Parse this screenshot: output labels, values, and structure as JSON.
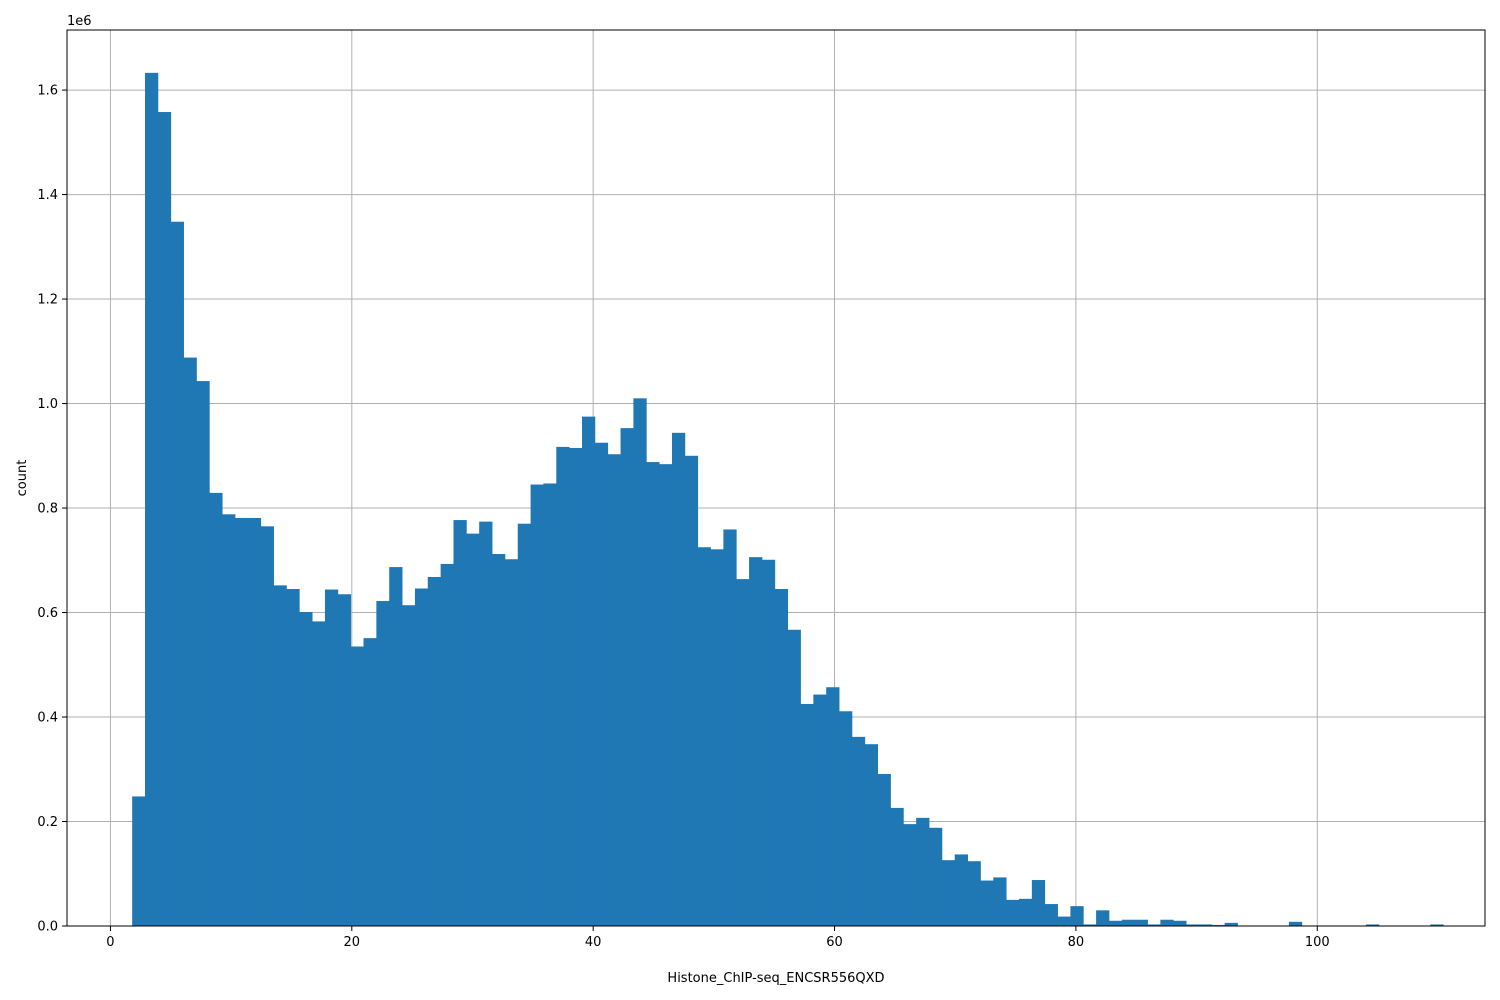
{
  "chart_data": {
    "type": "bar",
    "title": "",
    "xlabel": "Histone_ChIP-seq_ENCSR556QXD",
    "ylabel": "count",
    "y_offset_label": "1e6",
    "xlim": [
      -3.6,
      113.9
    ],
    "ylim": [
      0,
      1.715
    ],
    "xticks": [
      0,
      20,
      40,
      60,
      80,
      100
    ],
    "yticks": [
      0.0,
      0.2,
      0.4,
      0.6,
      0.8,
      1.0,
      1.2,
      1.4,
      1.6
    ],
    "xtick_labels": [
      "0",
      "20",
      "40",
      "60",
      "80",
      "100"
    ],
    "ytick_labels": [
      "0.0",
      "0.2",
      "0.4",
      "0.6",
      "0.8",
      "1.0",
      "1.2",
      "1.4",
      "1.6"
    ],
    "grid": true,
    "bar_color": "#1f77b4",
    "bin_start": 1.8,
    "bin_width": 1.065,
    "values_scale": "1e6",
    "values": [
      0.248,
      1.633,
      1.558,
      1.348,
      1.088,
      1.043,
      0.829,
      0.788,
      0.781,
      0.781,
      0.765,
      0.652,
      0.645,
      0.601,
      0.583,
      0.644,
      0.635,
      0.535,
      0.551,
      0.622,
      0.687,
      0.614,
      0.646,
      0.668,
      0.693,
      0.777,
      0.751,
      0.774,
      0.712,
      0.702,
      0.77,
      0.845,
      0.847,
      0.917,
      0.915,
      0.975,
      0.925,
      0.903,
      0.953,
      1.01,
      0.888,
      0.884,
      0.944,
      0.9,
      0.725,
      0.721,
      0.759,
      0.664,
      0.706,
      0.701,
      0.645,
      0.567,
      0.425,
      0.443,
      0.457,
      0.411,
      0.362,
      0.348,
      0.291,
      0.226,
      0.195,
      0.207,
      0.188,
      0.126,
      0.137,
      0.124,
      0.087,
      0.093,
      0.05,
      0.052,
      0.088,
      0.042,
      0.018,
      0.038,
      0.003,
      0.03,
      0.01,
      0.012,
      0.012,
      0.003,
      0.012,
      0.01,
      0.003,
      0.003,
      0.002,
      0.006,
      0.001,
      0.001,
      0.001,
      0.001,
      0.008,
      0.001,
      0.001,
      0.001,
      0.001,
      0.001,
      0.003,
      0.001,
      0.001,
      0.001,
      0.001,
      0.003
    ]
  }
}
